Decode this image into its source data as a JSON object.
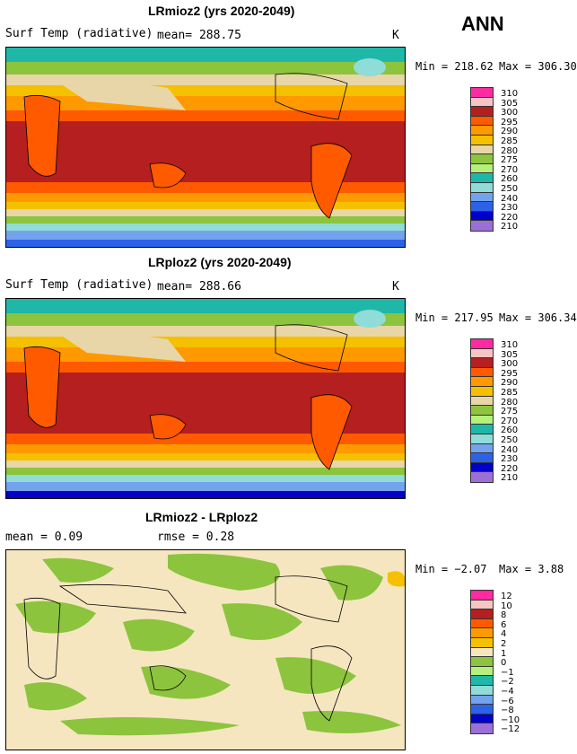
{
  "season": "ANN",
  "colors": {
    "abs": [
      "#9b6fd6",
      "#0000c8",
      "#2b62e8",
      "#74a3ee",
      "#8fdcd8",
      "#1fb8a8",
      "#b5f07a",
      "#8cc43e",
      "#e8d6a8",
      "#f5c000",
      "#ff9900",
      "#ff5a00",
      "#b51f1f",
      "#f7c4c4",
      "#ff2aa0"
    ],
    "diff": [
      "#9b6fd6",
      "#0000c8",
      "#2b62e8",
      "#74a3ee",
      "#8fdcd8",
      "#1fb8a8",
      "#b5f07a",
      "#8cc43e",
      "#f5e6c0",
      "#f5c000",
      "#ff9900",
      "#ff5a00",
      "#b51f1f",
      "#f7c4c4",
      "#ff2aa0"
    ]
  },
  "panels": [
    {
      "title": "LRmioz2 (yrs 2020-2049)",
      "left_label": "Surf Temp (radiative)",
      "mean_text": "mean= 288.75",
      "units": "K",
      "min_text": "Min = 218.62",
      "max_text": "Max = 306.30",
      "ticks": [
        "310",
        "305",
        "300",
        "295",
        "290",
        "285",
        "280",
        "275",
        "270",
        "260",
        "250",
        "240",
        "230",
        "220",
        "210"
      ]
    },
    {
      "title": "LRploz2 (yrs 2020-2049)",
      "left_label": "Surf Temp (radiative)",
      "mean_text": "mean= 288.66",
      "units": "K",
      "min_text": "Min = 217.95",
      "max_text": "Max = 306.34",
      "ticks": [
        "310",
        "305",
        "300",
        "295",
        "290",
        "285",
        "280",
        "275",
        "270",
        "260",
        "250",
        "240",
        "230",
        "220",
        "210"
      ]
    },
    {
      "title": "LRmioz2 - LRploz2",
      "left_label": "mean =    0.09",
      "mean_text": "rmse =    0.28",
      "units": "",
      "min_text": "Min = −2.07",
      "max_text": "Max =   3.88",
      "ticks": [
        "12",
        "10",
        "8",
        "6",
        "4",
        "2",
        "1",
        "0",
        "−1",
        "−2",
        "−4",
        "−6",
        "−8",
        "−10",
        "−12"
      ]
    }
  ]
}
